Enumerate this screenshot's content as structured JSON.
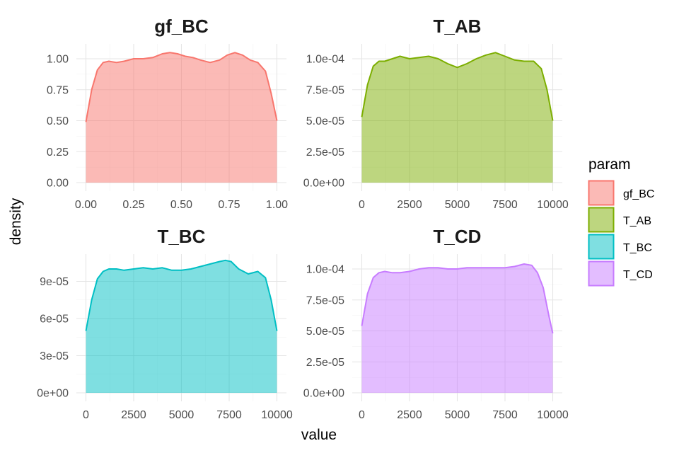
{
  "chart_data": {
    "type": "area",
    "xlabel": "value",
    "ylabel": "density",
    "legend": {
      "title": "param",
      "position": "right",
      "items": [
        "gf_BC",
        "T_AB",
        "T_BC",
        "T_CD"
      ]
    },
    "grid": true,
    "panels": [
      {
        "title": "gf_BC",
        "color": "#F8766D",
        "xlim": [
          0,
          1
        ],
        "ylim": [
          0,
          1.12
        ],
        "x_ticks": [
          0,
          0.25,
          0.5,
          0.75,
          1
        ],
        "x_tick_labels": [
          "0.00",
          "0.25",
          "0.50",
          "0.75",
          "1.00"
        ],
        "y_ticks": [
          0,
          0.25,
          0.5,
          0.75,
          1
        ],
        "y_tick_labels": [
          "0.00",
          "0.25",
          "0.50",
          "0.75",
          "1.00"
        ],
        "x": [
          0,
          0.03,
          0.06,
          0.09,
          0.12,
          0.16,
          0.2,
          0.25,
          0.3,
          0.35,
          0.4,
          0.44,
          0.48,
          0.52,
          0.56,
          0.6,
          0.65,
          0.7,
          0.74,
          0.78,
          0.82,
          0.86,
          0.9,
          0.94,
          0.97,
          1.0
        ],
        "y": [
          0.49,
          0.75,
          0.91,
          0.97,
          0.98,
          0.97,
          0.98,
          1.0,
          1.0,
          1.01,
          1.04,
          1.05,
          1.04,
          1.02,
          1.01,
          0.99,
          0.97,
          0.99,
          1.03,
          1.05,
          1.03,
          0.99,
          0.97,
          0.9,
          0.72,
          0.5
        ]
      },
      {
        "title": "T_AB",
        "color": "#7CAE00",
        "xlim": [
          0,
          10000
        ],
        "ylim": [
          0,
          0.000112
        ],
        "x_ticks": [
          0,
          2500,
          5000,
          7500,
          10000
        ],
        "x_tick_labels": [
          "0",
          "2500",
          "5000",
          "7500",
          "10000"
        ],
        "y_ticks": [
          0,
          2.5e-05,
          5e-05,
          7.5e-05,
          0.0001
        ],
        "y_tick_labels": [
          "0.0e+00",
          "2.5e-05",
          "5.0e-05",
          "7.5e-05",
          "1.0e-04"
        ],
        "x": [
          0,
          300,
          600,
          900,
          1200,
          1600,
          2000,
          2500,
          3000,
          3500,
          4000,
          4500,
          5000,
          5500,
          6000,
          6500,
          7000,
          7500,
          8000,
          8500,
          9000,
          9400,
          9700,
          10000
        ],
        "y": [
          5.3e-05,
          7.9e-05,
          9.4e-05,
          9.8e-05,
          9.8e-05,
          0.0001,
          0.000102,
          0.0001,
          0.000101,
          0.000102,
          0.0001,
          9.6e-05,
          9.3e-05,
          9.6e-05,
          0.0001,
          0.000103,
          0.000105,
          0.000102,
          9.9e-05,
          9.8e-05,
          9.8e-05,
          9.2e-05,
          7.5e-05,
          5e-05
        ]
      },
      {
        "title": "T_BC",
        "color": "#00BFC4",
        "xlim": [
          0,
          10000
        ],
        "ylim": [
          0,
          0.000112
        ],
        "x_ticks": [
          0,
          2500,
          5000,
          7500,
          10000
        ],
        "x_tick_labels": [
          "0",
          "2500",
          "5000",
          "7500",
          "10000"
        ],
        "y_ticks": [
          0,
          3e-05,
          6e-05,
          9e-05
        ],
        "y_tick_labels": [
          "0e+00",
          "3e-05",
          "6e-05",
          "9e-05"
        ],
        "x": [
          0,
          300,
          600,
          900,
          1200,
          1600,
          2000,
          2500,
          3000,
          3500,
          4000,
          4500,
          5000,
          5500,
          6000,
          6500,
          7000,
          7300,
          7600,
          8000,
          8500,
          9000,
          9400,
          9700,
          10000
        ],
        "y": [
          5e-05,
          7.5e-05,
          9.2e-05,
          9.8e-05,
          0.0001,
          0.0001,
          9.9e-05,
          0.0001,
          0.000101,
          0.0001,
          0.000101,
          9.9e-05,
          9.9e-05,
          0.0001,
          0.000102,
          0.000104,
          0.000106,
          0.000107,
          0.000106,
          0.0001,
          9.6e-05,
          9.8e-05,
          9.3e-05,
          7.5e-05,
          5e-05
        ]
      },
      {
        "title": "T_CD",
        "color": "#C77CFF",
        "xlim": [
          0,
          10000
        ],
        "ylim": [
          0,
          0.000112
        ],
        "x_ticks": [
          0,
          2500,
          5000,
          7500,
          10000
        ],
        "x_tick_labels": [
          "0",
          "2500",
          "5000",
          "7500",
          "10000"
        ],
        "y_ticks": [
          0,
          2.5e-05,
          5e-05,
          7.5e-05,
          0.0001
        ],
        "y_tick_labels": [
          "0.0e+00",
          "2.5e-05",
          "5.0e-05",
          "7.5e-05",
          "1.0e-04"
        ],
        "x": [
          0,
          300,
          600,
          900,
          1200,
          1600,
          2000,
          2500,
          3000,
          3500,
          4000,
          4500,
          5000,
          5500,
          6000,
          6500,
          7000,
          7500,
          8000,
          8500,
          8900,
          9200,
          9500,
          9800,
          10000
        ],
        "y": [
          5.4e-05,
          8e-05,
          9.3e-05,
          9.7e-05,
          9.8e-05,
          9.7e-05,
          9.7e-05,
          9.8e-05,
          0.0001,
          0.000101,
          0.000101,
          0.0001,
          0.0001,
          0.000101,
          0.000101,
          0.000101,
          0.000101,
          0.000101,
          0.000102,
          0.000104,
          0.000103,
          9.7e-05,
          8.5e-05,
          6.2e-05,
          4.8e-05
        ]
      }
    ]
  }
}
